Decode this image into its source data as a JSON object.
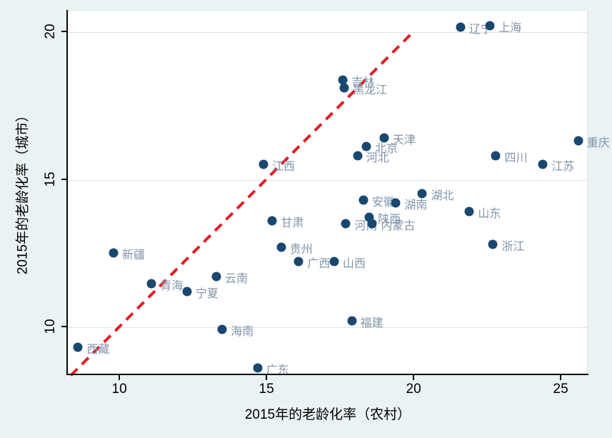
{
  "chart_data": {
    "type": "scatter",
    "title": "",
    "xlabel": "2015年的老龄化率（农村）",
    "ylabel": "2015年的老龄化率（城市）",
    "xlim": [
      8.25,
      25.92
    ],
    "ylim": [
      8.41,
      20.73
    ],
    "xticks": [
      10,
      15,
      20,
      25
    ],
    "yticks": [
      10,
      15,
      20
    ],
    "grid": "horizontal-only",
    "legend": "none",
    "colors": {
      "marker": "#1a476f",
      "marker_label": "#8294a9",
      "reference_line": "#e01f25",
      "outer_background": "#eaf2f3",
      "plot_background": "#ffffff",
      "gridline": "#dce6ea",
      "axis": "#0a0a0a"
    },
    "reference_line": {
      "name": "45-degree-identity-line",
      "style": "dashed",
      "x1": 8.35,
      "y1": 8.35,
      "x2": 19.95,
      "y2": 19.95
    },
    "points": [
      {
        "name": "西藏",
        "x": 8.6,
        "y": 9.3
      },
      {
        "name": "新疆",
        "x": 9.8,
        "y": 12.5
      },
      {
        "name": "青海",
        "x": 11.1,
        "y": 11.45
      },
      {
        "name": "宁夏",
        "x": 12.3,
        "y": 11.2
      },
      {
        "name": "云南",
        "x": 13.3,
        "y": 11.7
      },
      {
        "name": "海南",
        "x": 13.5,
        "y": 9.9
      },
      {
        "name": "广东",
        "x": 14.7,
        "y": 8.6
      },
      {
        "name": "江西",
        "x": 14.9,
        "y": 15.5
      },
      {
        "name": "甘肃",
        "x": 15.2,
        "y": 13.6
      },
      {
        "name": "贵州",
        "x": 15.5,
        "y": 12.7
      },
      {
        "name": "广西",
        "x": 16.1,
        "y": 12.2
      },
      {
        "name": "山西",
        "x": 17.3,
        "y": 12.2
      },
      {
        "name": "吉林",
        "x": 17.6,
        "y": 18.35
      },
      {
        "name": "黑龙江",
        "x": 17.65,
        "y": 18.1
      },
      {
        "name": "河南",
        "x": 17.7,
        "y": 13.5
      },
      {
        "name": "福建",
        "x": 17.9,
        "y": 10.2
      },
      {
        "name": "河北",
        "x": 18.1,
        "y": 15.8
      },
      {
        "name": "安徽",
        "x": 18.3,
        "y": 14.3
      },
      {
        "name": "北京",
        "x": 18.4,
        "y": 16.1
      },
      {
        "name": "陕西",
        "x": 18.5,
        "y": 13.7
      },
      {
        "name": "内蒙古",
        "x": 18.6,
        "y": 13.5
      },
      {
        "name": "天津",
        "x": 19.0,
        "y": 16.4
      },
      {
        "name": "湖南",
        "x": 19.4,
        "y": 14.2
      },
      {
        "name": "湖北",
        "x": 20.3,
        "y": 14.5
      },
      {
        "name": "辽宁",
        "x": 21.6,
        "y": 20.15
      },
      {
        "name": "山东",
        "x": 21.9,
        "y": 13.9
      },
      {
        "name": "上海",
        "x": 22.6,
        "y": 20.2
      },
      {
        "name": "浙江",
        "x": 22.7,
        "y": 12.8
      },
      {
        "name": "四川",
        "x": 22.8,
        "y": 15.8
      },
      {
        "name": "江苏",
        "x": 24.4,
        "y": 15.5
      },
      {
        "name": "重庆",
        "x": 25.6,
        "y": 16.3
      }
    ]
  }
}
